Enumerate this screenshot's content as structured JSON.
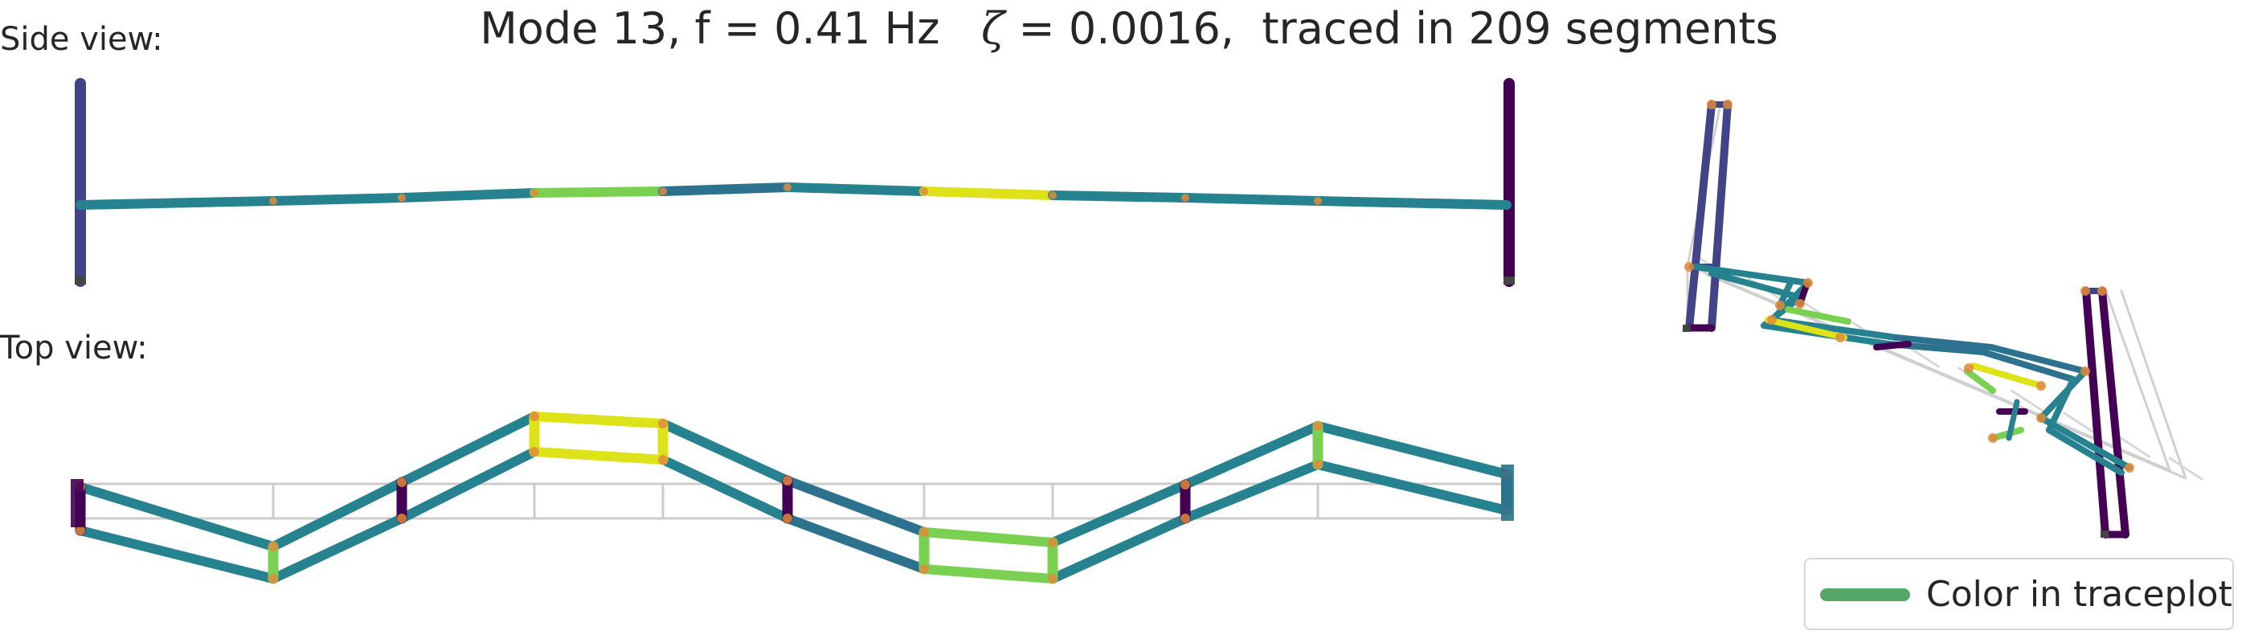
{
  "figure": {
    "title": {
      "mode_prefix": "Mode 13, f = 0.41 Hz",
      "zeta_symbol": "ζ",
      "zeta_value": " = 0.0016,",
      "traced": "traced in 209 segments"
    },
    "side_view_label": "Side view:",
    "top_view_label": "Top view:",
    "legend": {
      "label": "Color in traceplot",
      "color": "#55a868"
    }
  },
  "colors": {
    "tower_side": "#414487",
    "tower_side_dark": "#440154",
    "teal": "#26828e",
    "teal_blue": "#2c728e",
    "green": "#7ad151",
    "yellow": "#dde318",
    "purple": "#440154",
    "node": "#e08a3c",
    "grid": "#cccccc"
  }
}
